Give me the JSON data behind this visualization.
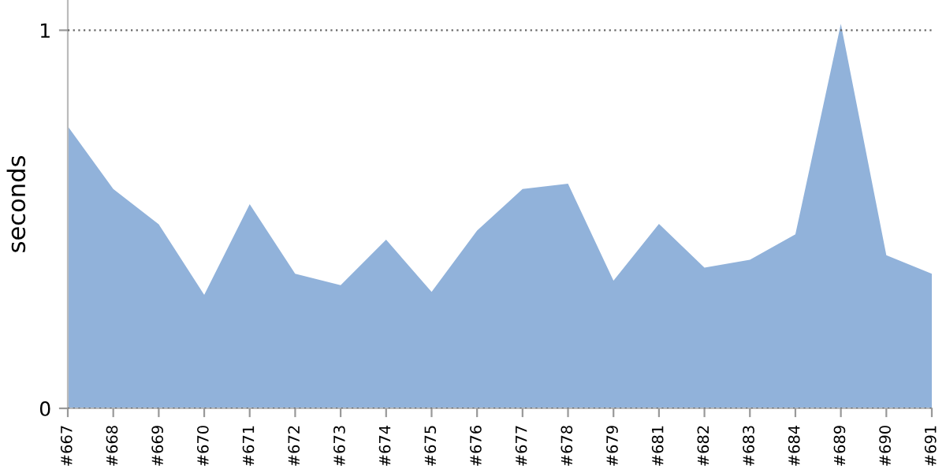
{
  "chart_data": {
    "type": "area",
    "ylabel": "seconds",
    "categories": [
      "#667",
      "#668",
      "#669",
      "#670",
      "#671",
      "#672",
      "#673",
      "#674",
      "#675",
      "#676",
      "#677",
      "#678",
      "#679",
      "#681",
      "#682",
      "#683",
      "#684",
      "#689",
      "#690",
      "#691"
    ],
    "series": [
      {
        "color": "#91b2da",
        "values": [
          0.746,
          0.58,
          0.487,
          0.3,
          0.54,
          0.356,
          0.326,
          0.446,
          0.308,
          0.47,
          0.58,
          0.594,
          0.338,
          0.488,
          0.372,
          0.393,
          0.46,
          1.017,
          0.405,
          0.356
        ]
      }
    ],
    "ylim": [
      0,
      1.08
    ],
    "yticks": [
      0,
      1
    ],
    "grid": "y",
    "legend": false
  }
}
